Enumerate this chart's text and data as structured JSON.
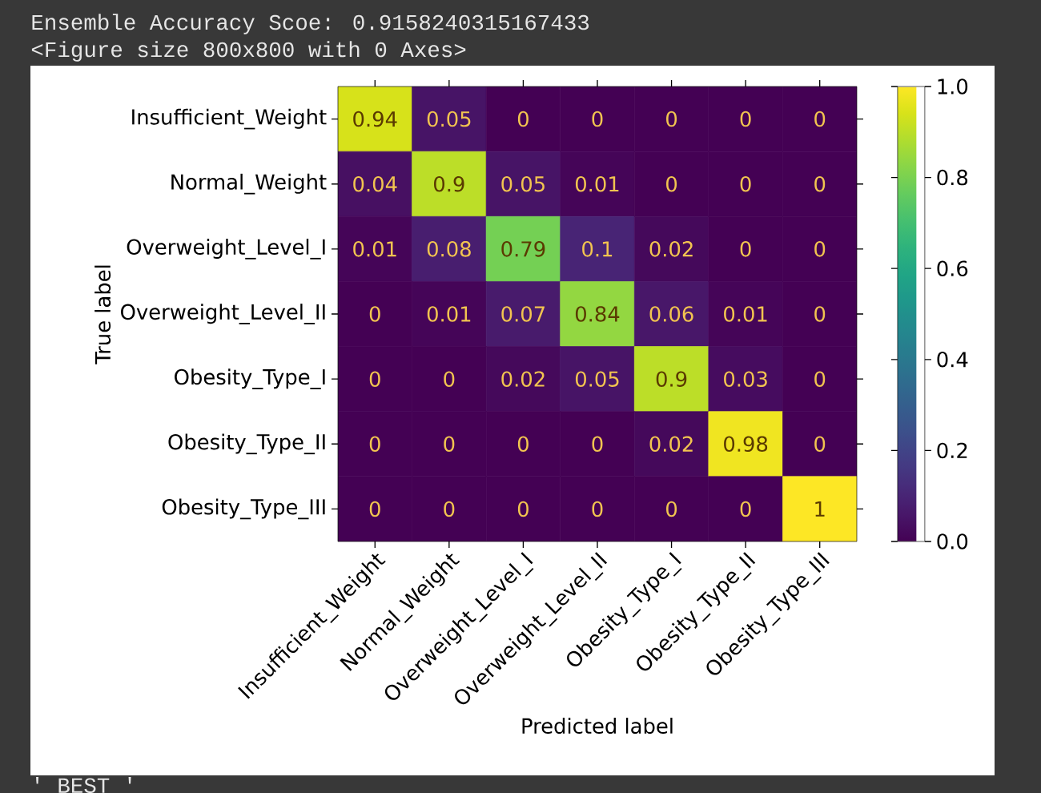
{
  "chart_data": {
    "type": "heatmap",
    "annotations": [
      "Ensemble Accuracy Scoe: 0.9158240315167433",
      "<Figure size 800x800 with 0 Axes>",
      "' BEST '"
    ],
    "xlabel": "Predicted label",
    "ylabel": "True label",
    "categories": [
      "Insufficient_Weight",
      "Normal_Weight",
      "Overweight_Level_I",
      "Overweight_Level_II",
      "Obesity_Type_I",
      "Obesity_Type_II",
      "Obesity_Type_III"
    ],
    "y_categories": [
      "Insufficient_Weight",
      "Normal_Weight",
      "Overweight_Level_I",
      "Overweight_Level_II",
      "Obesity_Type_I",
      "Obesity_Type_II",
      "Obesity_Type_III"
    ],
    "cells": [
      [
        0.94,
        0.05,
        0,
        0,
        0,
        0,
        0
      ],
      [
        0.04,
        0.9,
        0.05,
        0.01,
        0,
        0,
        0
      ],
      [
        0.01,
        0.08,
        0.79,
        0.1,
        0.02,
        0,
        0
      ],
      [
        0,
        0.01,
        0.07,
        0.84,
        0.06,
        0.01,
        0
      ],
      [
        0,
        0,
        0.02,
        0.05,
        0.9,
        0.03,
        0
      ],
      [
        0,
        0,
        0,
        0,
        0.02,
        0.98,
        0
      ],
      [
        0,
        0,
        0,
        0,
        0,
        0,
        1
      ]
    ],
    "data_labels": true,
    "clim": [
      0,
      1
    ],
    "cticks": [
      {
        "value": 0,
        "label": "0.0"
      },
      0.2,
      0.4,
      0.6,
      0.8,
      {
        "value": 1,
        "label": "1.0"
      }
    ]
  }
}
